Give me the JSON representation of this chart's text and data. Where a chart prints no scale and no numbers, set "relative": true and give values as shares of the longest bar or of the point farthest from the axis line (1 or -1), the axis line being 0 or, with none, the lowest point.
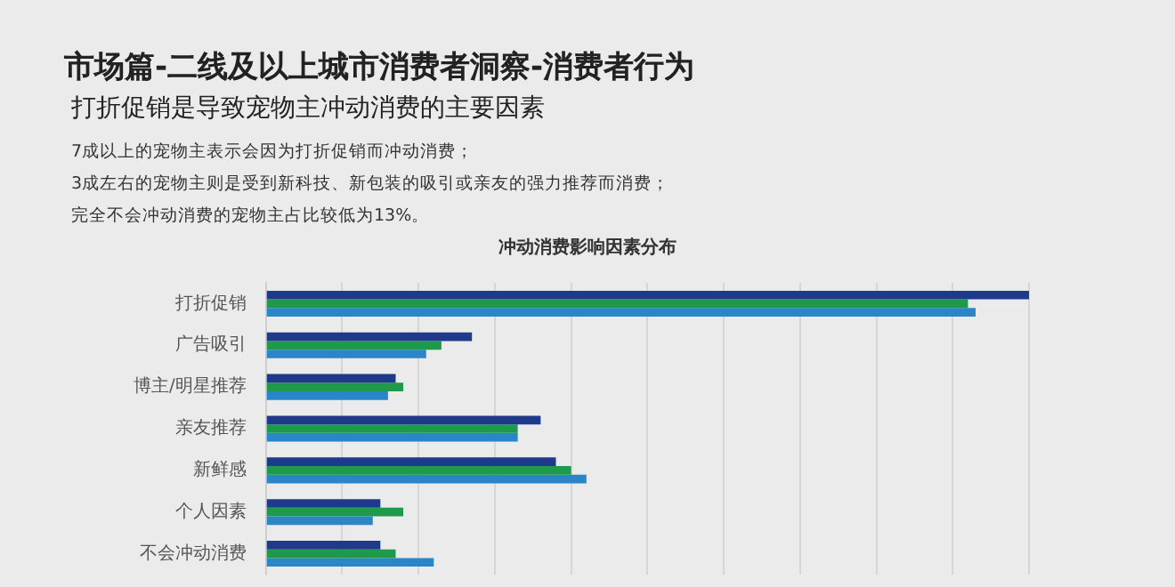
{
  "chart_data": {
    "type": "bar",
    "orientation": "horizontal",
    "relative": true,
    "grid": "x",
    "legend": false,
    "title": "市场篇-二线及以上城市消费者洞察-消费者行为",
    "subtitle": "打折促销是导致宠物主冲动消费的主要因素",
    "annotations": [
      "7成以上的宠物主表示会因为打折促销而冲动消费；",
      "3成左右的宠物主则是受到新科技、新包装的吸引或亲友的强力推荐而消费；",
      "完全不会冲动消费的宠物主占比较低为13%。",
      "冲动消费影响因素分布"
    ],
    "categories": [
      "打折促销",
      "广告吸引",
      "博主/明星推荐",
      "亲友推荐",
      "新鲜感",
      "个人因素",
      "不会冲动消费"
    ],
    "series": [
      {
        "color": "#1f3a8a",
        "values": [
          1,
          0.27,
          0.17,
          0.36,
          0.38,
          0.15,
          0.15
        ]
      },
      {
        "color": "#1f9a4c",
        "values": [
          0.92,
          0.23,
          0.18,
          0.33,
          0.4,
          0.18,
          0.17
        ]
      },
      {
        "color": "#2a86c8",
        "values": [
          0.93,
          0.21,
          0.16,
          0.33,
          0.42,
          0.14,
          0.22
        ]
      }
    ]
  }
}
